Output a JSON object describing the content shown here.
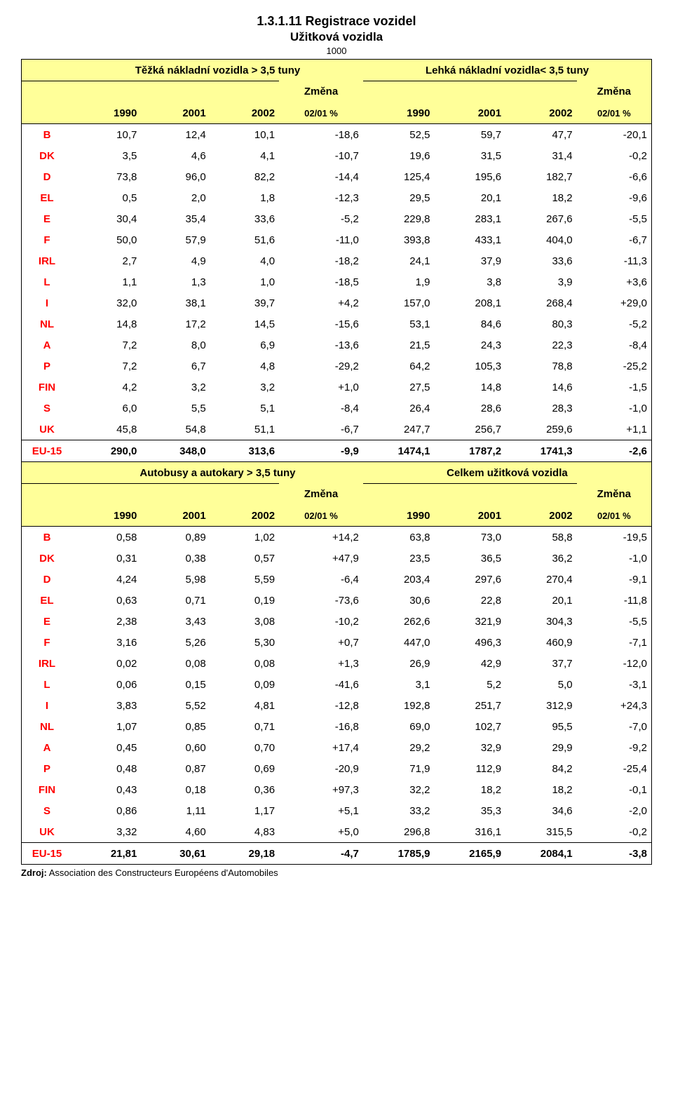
{
  "title": "1.3.1.11 Registrace vozidel",
  "subtitle": "Užitková vozidla",
  "thousand": "1000",
  "source_label": "Zdroj:",
  "source_text": "Association des Constructeurs Européens d'Automobiles",
  "change_label": "Změna",
  "change_pct": "02/01 %",
  "years": [
    "1990",
    "2001",
    "2002"
  ],
  "groups": {
    "heavy": "Těžká nákladní vozidla > 3,5 tuny",
    "light": "Lehká nákladní vozidla< 3,5 tuny",
    "bus": "Autobusy a autokary > 3,5 tuny",
    "total": "Celkem užitková vozidla"
  },
  "countries": [
    "B",
    "DK",
    "D",
    "EL",
    "E",
    "F",
    "IRL",
    "L",
    "I",
    "NL",
    "A",
    "P",
    "FIN",
    "S",
    "UK"
  ],
  "eu_label": "EU-15",
  "colors": {
    "country_text": "#ff0000",
    "header_bg": "#ffff99"
  },
  "data": {
    "heavy": {
      "rows": [
        [
          "10,7",
          "12,4",
          "10,1",
          "-18,6"
        ],
        [
          "3,5",
          "4,6",
          "4,1",
          "-10,7"
        ],
        [
          "73,8",
          "96,0",
          "82,2",
          "-14,4"
        ],
        [
          "0,5",
          "2,0",
          "1,8",
          "-12,3"
        ],
        [
          "30,4",
          "35,4",
          "33,6",
          "-5,2"
        ],
        [
          "50,0",
          "57,9",
          "51,6",
          "-11,0"
        ],
        [
          "2,7",
          "4,9",
          "4,0",
          "-18,2"
        ],
        [
          "1,1",
          "1,3",
          "1,0",
          "-18,5"
        ],
        [
          "32,0",
          "38,1",
          "39,7",
          "+4,2"
        ],
        [
          "14,8",
          "17,2",
          "14,5",
          "-15,6"
        ],
        [
          "7,2",
          "8,0",
          "6,9",
          "-13,6"
        ],
        [
          "7,2",
          "6,7",
          "4,8",
          "-29,2"
        ],
        [
          "4,2",
          "3,2",
          "3,2",
          "+1,0"
        ],
        [
          "6,0",
          "5,5",
          "5,1",
          "-8,4"
        ],
        [
          "45,8",
          "54,8",
          "51,1",
          "-6,7"
        ]
      ],
      "eu": [
        "290,0",
        "348,0",
        "313,6",
        "-9,9"
      ]
    },
    "light": {
      "rows": [
        [
          "52,5",
          "59,7",
          "47,7",
          "-20,1"
        ],
        [
          "19,6",
          "31,5",
          "31,4",
          "-0,2"
        ],
        [
          "125,4",
          "195,6",
          "182,7",
          "-6,6"
        ],
        [
          "29,5",
          "20,1",
          "18,2",
          "-9,6"
        ],
        [
          "229,8",
          "283,1",
          "267,6",
          "-5,5"
        ],
        [
          "393,8",
          "433,1",
          "404,0",
          "-6,7"
        ],
        [
          "24,1",
          "37,9",
          "33,6",
          "-11,3"
        ],
        [
          "1,9",
          "3,8",
          "3,9",
          "+3,6"
        ],
        [
          "157,0",
          "208,1",
          "268,4",
          "+29,0"
        ],
        [
          "53,1",
          "84,6",
          "80,3",
          "-5,2"
        ],
        [
          "21,5",
          "24,3",
          "22,3",
          "-8,4"
        ],
        [
          "64,2",
          "105,3",
          "78,8",
          "-25,2"
        ],
        [
          "27,5",
          "14,8",
          "14,6",
          "-1,5"
        ],
        [
          "26,4",
          "28,6",
          "28,3",
          "-1,0"
        ],
        [
          "247,7",
          "256,7",
          "259,6",
          "+1,1"
        ]
      ],
      "eu": [
        "1474,1",
        "1787,2",
        "1741,3",
        "-2,6"
      ]
    },
    "bus": {
      "rows": [
        [
          "0,58",
          "0,89",
          "1,02",
          "+14,2"
        ],
        [
          "0,31",
          "0,38",
          "0,57",
          "+47,9"
        ],
        [
          "4,24",
          "5,98",
          "5,59",
          "-6,4"
        ],
        [
          "0,63",
          "0,71",
          "0,19",
          "-73,6"
        ],
        [
          "2,38",
          "3,43",
          "3,08",
          "-10,2"
        ],
        [
          "3,16",
          "5,26",
          "5,30",
          "+0,7"
        ],
        [
          "0,02",
          "0,08",
          "0,08",
          "+1,3"
        ],
        [
          "0,06",
          "0,15",
          "0,09",
          "-41,6"
        ],
        [
          "3,83",
          "5,52",
          "4,81",
          "-12,8"
        ],
        [
          "1,07",
          "0,85",
          "0,71",
          "-16,8"
        ],
        [
          "0,45",
          "0,60",
          "0,70",
          "+17,4"
        ],
        [
          "0,48",
          "0,87",
          "0,69",
          "-20,9"
        ],
        [
          "0,43",
          "0,18",
          "0,36",
          "+97,3"
        ],
        [
          "0,86",
          "1,11",
          "1,17",
          "+5,1"
        ],
        [
          "3,32",
          "4,60",
          "4,83",
          "+5,0"
        ]
      ],
      "eu": [
        "21,81",
        "30,61",
        "29,18",
        "-4,7"
      ]
    },
    "total": {
      "rows": [
        [
          "63,8",
          "73,0",
          "58,8",
          "-19,5"
        ],
        [
          "23,5",
          "36,5",
          "36,2",
          "-1,0"
        ],
        [
          "203,4",
          "297,6",
          "270,4",
          "-9,1"
        ],
        [
          "30,6",
          "22,8",
          "20,1",
          "-11,8"
        ],
        [
          "262,6",
          "321,9",
          "304,3",
          "-5,5"
        ],
        [
          "447,0",
          "496,3",
          "460,9",
          "-7,1"
        ],
        [
          "26,9",
          "42,9",
          "37,7",
          "-12,0"
        ],
        [
          "3,1",
          "5,2",
          "5,0",
          "-3,1"
        ],
        [
          "192,8",
          "251,7",
          "312,9",
          "+24,3"
        ],
        [
          "69,0",
          "102,7",
          "95,5",
          "-7,0"
        ],
        [
          "29,2",
          "32,9",
          "29,9",
          "-9,2"
        ],
        [
          "71,9",
          "112,9",
          "84,2",
          "-25,4"
        ],
        [
          "32,2",
          "18,2",
          "18,2",
          "-0,1"
        ],
        [
          "33,2",
          "35,3",
          "34,6",
          "-2,0"
        ],
        [
          "296,8",
          "316,1",
          "315,5",
          "-0,2"
        ]
      ],
      "eu": [
        "1785,9",
        "2165,9",
        "2084,1",
        "-3,8"
      ]
    }
  }
}
